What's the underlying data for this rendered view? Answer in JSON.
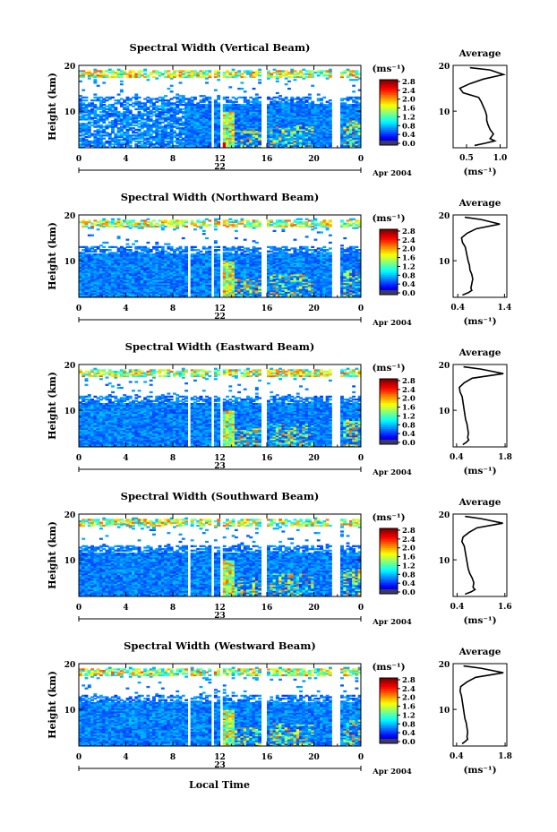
{
  "figure": {
    "xlabel": "Local Time",
    "date_label": "Apr 2004",
    "colorbar_unit": "(ms⁻¹)",
    "avg_title": "Average",
    "avg_unit": "(ms⁻¹)",
    "ylabel": "Height (km)"
  },
  "chart_data": [
    {
      "type": "heatmap",
      "title": "Spectral Width (Vertical Beam)",
      "x_ticks": [
        "0",
        "4",
        "8",
        "12",
        "16",
        "20",
        "0"
      ],
      "day_label": "22",
      "y_ticks": [
        "20",
        "10"
      ],
      "ylim": [
        2,
        20
      ],
      "xlim": [
        0,
        24
      ],
      "colorbar_ticks": [
        "2.8",
        "2.4",
        "2.0",
        "1.6",
        "1.2",
        "0.8",
        "0.4",
        "0.0"
      ],
      "profile": {
        "type": "line",
        "x_ticks": [
          "0.5",
          "1.0"
        ],
        "xlim": [
          0.3,
          1.1
        ],
        "y_ticks": [
          "20",
          "10"
        ],
        "heights": [
          2.5,
          3,
          3.5,
          4,
          5,
          6,
          7,
          8,
          9,
          10,
          11,
          12,
          13,
          14,
          15,
          16,
          17,
          18,
          19,
          19.5
        ],
        "values": [
          0.62,
          0.78,
          0.92,
          0.85,
          0.9,
          0.85,
          0.82,
          0.8,
          0.8,
          0.78,
          0.75,
          0.72,
          0.68,
          0.45,
          0.4,
          0.55,
          0.75,
          1.05,
          0.85,
          0.55
        ]
      }
    },
    {
      "type": "heatmap",
      "title": "Spectral Width (Northward Beam)",
      "x_ticks": [
        "0",
        "4",
        "8",
        "12",
        "16",
        "20",
        "0"
      ],
      "day_label": "22",
      "y_ticks": [
        "20",
        "10"
      ],
      "ylim": [
        2,
        20
      ],
      "xlim": [
        0,
        24
      ],
      "colorbar_ticks": [
        "2.8",
        "2.4",
        "2.0",
        "1.6",
        "1.2",
        "0.8",
        "0.4",
        "0.0"
      ],
      "profile": {
        "type": "line",
        "x_ticks": [
          "0.4",
          "1.4"
        ],
        "xlim": [
          0.3,
          1.45
        ],
        "y_ticks": [
          "20",
          "10"
        ],
        "heights": [
          2.5,
          3,
          3.5,
          4,
          5,
          6,
          7,
          8,
          9,
          10,
          11,
          12,
          13,
          14,
          15,
          16,
          17,
          18,
          19,
          19.5
        ],
        "values": [
          0.5,
          0.62,
          0.7,
          0.68,
          0.7,
          0.72,
          0.7,
          0.66,
          0.65,
          0.62,
          0.6,
          0.58,
          0.56,
          0.5,
          0.48,
          0.6,
          0.8,
          1.3,
          0.9,
          0.55
        ]
      }
    },
    {
      "type": "heatmap",
      "title": "Spectral Width (Eastward Beam)",
      "x_ticks": [
        "0",
        "4",
        "8",
        "12",
        "16",
        "20",
        "0"
      ],
      "day_label": "23",
      "y_ticks": [
        "20",
        "10"
      ],
      "ylim": [
        2,
        20
      ],
      "xlim": [
        0,
        24
      ],
      "colorbar_ticks": [
        "2.8",
        "2.4",
        "2.0",
        "1.6",
        "1.2",
        "0.8",
        "0.4",
        "0.0"
      ],
      "profile": {
        "type": "line",
        "x_ticks": [
          "0.4",
          "1.8"
        ],
        "xlim": [
          0.3,
          1.85
        ],
        "y_ticks": [
          "20",
          "10"
        ],
        "heights": [
          2.5,
          3,
          3.5,
          4,
          5,
          6,
          7,
          8,
          9,
          10,
          11,
          12,
          13,
          14,
          15,
          16,
          17,
          18,
          19,
          19.5
        ],
        "values": [
          0.58,
          0.68,
          0.75,
          0.72,
          0.74,
          0.72,
          0.7,
          0.66,
          0.64,
          0.62,
          0.6,
          0.58,
          0.56,
          0.5,
          0.48,
          0.62,
          0.85,
          1.75,
          1.1,
          0.6
        ]
      }
    },
    {
      "type": "heatmap",
      "title": "Spectral Width (Southward Beam)",
      "x_ticks": [
        "0",
        "4",
        "8",
        "12",
        "16",
        "20",
        "0"
      ],
      "day_label": "23",
      "y_ticks": [
        "20",
        "10"
      ],
      "ylim": [
        2,
        20
      ],
      "xlim": [
        0,
        24
      ],
      "colorbar_ticks": [
        "2.8",
        "2.4",
        "2.0",
        "1.6",
        "1.2",
        "0.8",
        "0.4",
        "0.0"
      ],
      "profile": {
        "type": "line",
        "x_ticks": [
          "0.4",
          "1.6"
        ],
        "xlim": [
          0.3,
          1.65
        ],
        "y_ticks": [
          "20",
          "10"
        ],
        "heights": [
          2.5,
          3,
          3.5,
          4,
          5,
          6,
          7,
          8,
          9,
          10,
          11,
          12,
          13,
          14,
          15,
          16,
          17,
          18,
          19,
          19.5
        ],
        "values": [
          0.6,
          0.75,
          0.85,
          0.8,
          0.82,
          0.78,
          0.72,
          0.68,
          0.66,
          0.64,
          0.62,
          0.6,
          0.58,
          0.52,
          0.55,
          0.7,
          0.9,
          1.55,
          1.0,
          0.6
        ]
      }
    },
    {
      "type": "heatmap",
      "title": "Spectral Width (Westward Beam)",
      "x_ticks": [
        "0",
        "4",
        "8",
        "12",
        "16",
        "20",
        "0"
      ],
      "day_label": "23",
      "y_ticks": [
        "20",
        "10"
      ],
      "ylim": [
        2,
        20
      ],
      "xlim": [
        0,
        24
      ],
      "colorbar_ticks": [
        "2.8",
        "2.4",
        "2.0",
        "1.6",
        "1.2",
        "0.8",
        "0.4",
        "0.0"
      ],
      "profile": {
        "type": "line",
        "x_ticks": [
          "0.4",
          "1.8"
        ],
        "xlim": [
          0.3,
          1.85
        ],
        "y_ticks": [
          "20",
          "10"
        ],
        "heights": [
          2.5,
          3,
          3.5,
          4,
          5,
          6,
          7,
          8,
          9,
          10,
          11,
          12,
          13,
          14,
          15,
          16,
          17,
          18,
          19,
          19.5
        ],
        "values": [
          0.56,
          0.65,
          0.72,
          0.7,
          0.72,
          0.7,
          0.68,
          0.64,
          0.62,
          0.6,
          0.58,
          0.56,
          0.54,
          0.5,
          0.52,
          0.7,
          0.95,
          1.75,
          1.1,
          0.6
        ]
      }
    }
  ]
}
